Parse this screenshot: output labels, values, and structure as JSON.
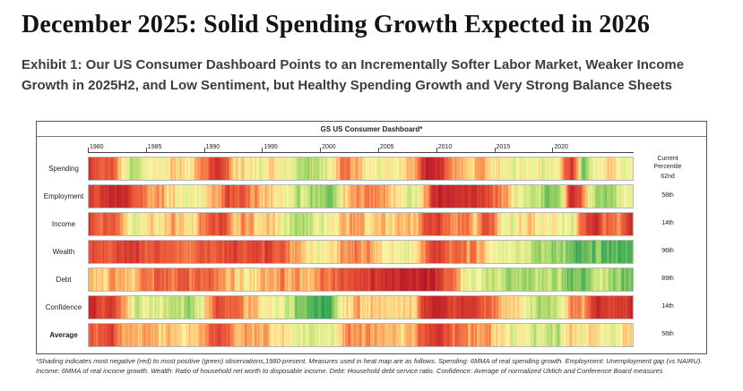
{
  "page": {
    "title": "December 2025: Solid Spending Growth Expected in 2026",
    "exhibit_caption": "Exhibit 1: Our US Consumer Dashboard Points to an Incrementally Softer Labor Market, Weaker Income Growth in 2025H2, and Low Sentiment, but Healthy Spending Growth and Very Strong Balance Sheets"
  },
  "chart_data": {
    "type": "heatmap",
    "title": "GS US Consumer Dashboard*",
    "x_tick_labels": [
      "1980",
      "1985",
      "1990",
      "1995",
      "2000",
      "2005",
      "2010",
      "2015",
      "2020"
    ],
    "x_range": [
      1980,
      2025
    ],
    "x_resolution_rendered": "monthly (interpolated from yearly estimates)",
    "legend": "red = most negative observation since 1980, green = most positive",
    "colors": {
      "most_negative": "#be1e2d",
      "neutral": "#fdf5aa",
      "most_positive": "#28a055"
    },
    "right_column_header": "Current Percentile",
    "years": [
      1980,
      1981,
      1982,
      1983,
      1984,
      1985,
      1986,
      1987,
      1988,
      1989,
      1990,
      1991,
      1992,
      1993,
      1994,
      1995,
      1996,
      1997,
      1998,
      1999,
      2000,
      2001,
      2002,
      2003,
      2004,
      2005,
      2006,
      2007,
      2008,
      2009,
      2010,
      2011,
      2012,
      2013,
      2014,
      2015,
      2016,
      2017,
      2018,
      2019,
      2020,
      2021,
      2022,
      2023,
      2024,
      2025
    ],
    "rows": [
      {
        "label": "Spending",
        "current_percentile": "62nd",
        "values": [
          15,
          30,
          20,
          70,
          75,
          60,
          65,
          50,
          60,
          45,
          25,
          15,
          55,
          60,
          65,
          55,
          60,
          70,
          75,
          80,
          65,
          35,
          45,
          55,
          65,
          60,
          55,
          40,
          5,
          10,
          45,
          50,
          45,
          50,
          60,
          70,
          60,
          60,
          65,
          55,
          10,
          90,
          60,
          55,
          65,
          62
        ]
      },
      {
        "label": "Employment",
        "current_percentile": "58th",
        "values": [
          20,
          15,
          5,
          10,
          35,
          40,
          45,
          55,
          65,
          70,
          55,
          30,
          25,
          35,
          45,
          55,
          60,
          70,
          80,
          85,
          88,
          60,
          40,
          35,
          45,
          55,
          65,
          70,
          40,
          5,
          3,
          8,
          15,
          25,
          40,
          55,
          65,
          75,
          85,
          90,
          5,
          40,
          85,
          90,
          70,
          58
        ]
      },
      {
        "label": "Income",
        "current_percentile": "14th",
        "values": [
          20,
          35,
          25,
          55,
          75,
          55,
          60,
          45,
          60,
          50,
          30,
          20,
          50,
          40,
          55,
          50,
          60,
          70,
          80,
          70,
          65,
          45,
          40,
          50,
          55,
          45,
          55,
          50,
          20,
          15,
          40,
          35,
          50,
          20,
          55,
          70,
          55,
          55,
          60,
          60,
          70,
          30,
          10,
          40,
          35,
          14
        ]
      },
      {
        "label": "Wealth",
        "current_percentile": "96th",
        "values": [
          30,
          25,
          20,
          25,
          20,
          25,
          30,
          30,
          30,
          35,
          25,
          25,
          20,
          20,
          15,
          25,
          35,
          45,
          55,
          65,
          60,
          45,
          35,
          45,
          55,
          60,
          65,
          60,
          30,
          20,
          35,
          35,
          40,
          55,
          65,
          65,
          70,
          80,
          80,
          85,
          90,
          98,
          85,
          90,
          95,
          96
        ]
      },
      {
        "label": "Debt",
        "current_percentile": "89th",
        "values": [
          55,
          50,
          45,
          50,
          45,
          35,
          30,
          30,
          35,
          30,
          35,
          40,
          50,
          55,
          50,
          40,
          40,
          45,
          45,
          40,
          35,
          25,
          20,
          15,
          15,
          10,
          5,
          2,
          5,
          15,
          35,
          55,
          70,
          75,
          78,
          80,
          80,
          78,
          78,
          80,
          95,
          90,
          75,
          80,
          85,
          89
        ]
      },
      {
        "label": "Confidence",
        "current_percentile": "14th",
        "values": [
          10,
          25,
          15,
          50,
          70,
          65,
          70,
          75,
          80,
          75,
          40,
          20,
          30,
          40,
          55,
          60,
          65,
          80,
          90,
          95,
          98,
          60,
          50,
          45,
          55,
          50,
          55,
          50,
          10,
          5,
          15,
          10,
          20,
          30,
          45,
          60,
          60,
          75,
          80,
          75,
          35,
          40,
          5,
          15,
          20,
          14
        ]
      },
      {
        "label": "Average",
        "current_percentile": "56th",
        "values": [
          25,
          30,
          22,
          43,
          53,
          47,
          50,
          48,
          55,
          51,
          35,
          25,
          38,
          42,
          48,
          48,
          53,
          63,
          71,
          73,
          69,
          45,
          38,
          41,
          48,
          47,
          50,
          45,
          18,
          12,
          29,
          32,
          40,
          43,
          57,
          67,
          65,
          71,
          75,
          74,
          51,
          65,
          53,
          62,
          62,
          56
        ]
      }
    ],
    "footnote": "*Shading indicates most negative (red) to most positive (green) observations,1980-present. Measures used in heat map are as follows. Spending: 6MMA of real spending growth. Employment: Unemployment gap (vs NAIRU). Income: 6MMA of real income growth. Wealth: Ratio of household net worth to disposable income. Debt: Household debt service ratio. Confidence: Average of normalized UMich and Conference Board measures"
  }
}
